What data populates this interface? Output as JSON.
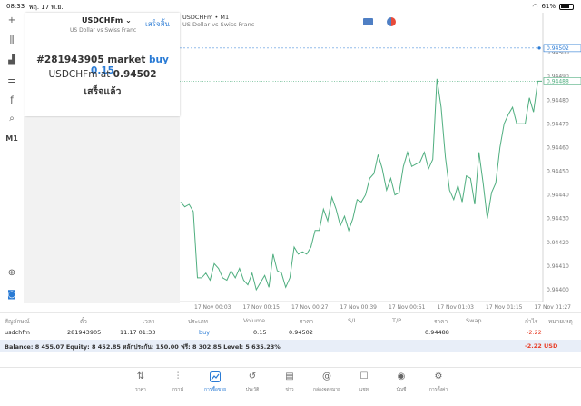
{
  "status_bar": {
    "time": "08:33",
    "date": "พฤ. 17 พ.ย.",
    "battery": "61%"
  },
  "left_tools": {
    "timeframe": "M1",
    "icons": [
      "crosshair-icon",
      "candles-icon",
      "bar-chart-icon",
      "indicators-icon",
      "function-icon",
      "objects-icon"
    ]
  },
  "dialog": {
    "symbol": "USDCHFm",
    "chevron": "⌄",
    "description": "US Dollar vs Swiss Franc",
    "done_label": "เสร็จสิ้น",
    "order_prefix": "#281943905 market ",
    "order_side": "buy 0.15",
    "fill_prefix": "USDCHFm at ",
    "fill_price": "0.94502",
    "status": "เสร็จแล้ว"
  },
  "chart": {
    "title": "USDCHFm • M1",
    "subtitle": "US Dollar vs Swiss Franc",
    "subtitle_hidden": "BUY 0.15"
  },
  "chart_data": {
    "type": "line",
    "series": [
      {
        "name": "",
        "values": [
          0.94437,
          0.94435,
          0.94436,
          0.94433,
          0.94405,
          0.94405,
          0.94407,
          0.94404,
          0.94411,
          0.94409,
          0.94405,
          0.94404,
          0.94408,
          0.94405,
          0.94409,
          0.94404,
          0.94402,
          0.94407,
          0.944,
          0.94403,
          0.94406,
          0.94401,
          0.94415,
          0.94408,
          0.94407,
          0.94401,
          0.94405,
          0.94418,
          0.94415,
          0.94416,
          0.94415,
          0.94418,
          0.94425,
          0.94425,
          0.94434,
          0.94429,
          0.94439,
          0.94434,
          0.94427,
          0.94431,
          0.94425,
          0.9443,
          0.94438,
          0.94437,
          0.9444,
          0.94447,
          0.94449,
          0.94457,
          0.94451,
          0.94442,
          0.94447,
          0.9444,
          0.94441,
          0.94452,
          0.94458,
          0.94452,
          0.94453,
          0.94454,
          0.94458,
          0.94451,
          0.94455,
          0.94489,
          0.94477,
          0.94456,
          0.94442,
          0.94438,
          0.94444,
          0.94437,
          0.94448,
          0.94447,
          0.94436,
          0.94458,
          0.94445,
          0.9443,
          0.94441,
          0.94445,
          0.9446,
          0.9447,
          0.94474,
          0.94477,
          0.9447,
          0.9447,
          0.9447,
          0.94481,
          0.94475,
          0.94488,
          0.94488
        ]
      }
    ],
    "y_ticks": [
      "0.94500",
      "0.94490",
      "0.94480",
      "0.94470",
      "0.94460",
      "0.94450",
      "0.94440",
      "0.94430",
      "0.94420",
      "0.94410",
      "0.94400"
    ],
    "x_ticks": [
      "17 Nov 00:03",
      "17 Nov 00:15",
      "17 Nov 00:27",
      "17 Nov 00:39",
      "17 Nov 00:51",
      "17 Nov 01:03",
      "17 Nov 01:15",
      "17 Nov 01:27"
    ],
    "ylim": [
      0.94395,
      0.9451
    ],
    "buy_level": 0.94502,
    "buy_label": "0.94502",
    "bid_level": 0.94488,
    "bid_label": "0.94488",
    "line_color": "#4fae7f",
    "buy_color": "#2a7bd5",
    "bid_color": "#4fae7f"
  },
  "table": {
    "headers": [
      "สัญลักษณ์",
      "ตั๋ว",
      "เวลา",
      "ประเภท",
      "Volume",
      "ราคา",
      "S/L",
      "T/P",
      "ราคา",
      "Swap",
      "กำไร",
      "หมายเหตุ"
    ],
    "row": {
      "symbol": "usdchfm",
      "ticket": "281943905",
      "time": "11.17 01:33",
      "type": "buy",
      "volume": "0.15",
      "price": "0.94502",
      "sl": "",
      "tp": "",
      "current": "0.94488",
      "swap": "",
      "profit": "-2.22",
      "comment": ""
    },
    "balance_text": "Balance: 8 455.07 Equity: 8 452.85 หลักประกัน: 150.00 ฟรี: 8 302.85 Level: 5 635.23%",
    "total_profit": "-2.22",
    "currency": "USD"
  },
  "nav": [
    {
      "label": "ราคา",
      "icon": "⇅",
      "name": "nav-quotes"
    },
    {
      "label": "กราฟ",
      "icon": "⫶",
      "name": "nav-charts"
    },
    {
      "label": "การซื้อขาย",
      "icon": "📈",
      "name": "nav-trade"
    },
    {
      "label": "ประวัติ",
      "icon": "↺",
      "name": "nav-history"
    },
    {
      "label": "ข่าว",
      "icon": "▤",
      "name": "nav-news"
    },
    {
      "label": "กล่องจดหมาย",
      "icon": "@",
      "name": "nav-mailbox"
    },
    {
      "label": "แชท",
      "icon": "☐",
      "name": "nav-chat"
    },
    {
      "label": "บัญชี",
      "icon": "◉",
      "name": "nav-accounts"
    },
    {
      "label": "การตั้งค่า",
      "icon": "⚙",
      "name": "nav-settings"
    }
  ],
  "colors": {
    "accent": "#2a7bd5",
    "loss": "#e8402a"
  }
}
